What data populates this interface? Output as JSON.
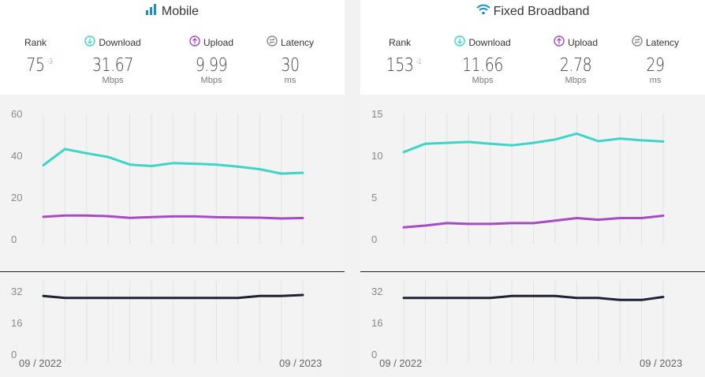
{
  "panels": [
    {
      "id": "mobile",
      "title": "Mobile",
      "icon": "signal-bars-icon",
      "rank": {
        "label": "Rank",
        "value": "75",
        "change": "-3"
      },
      "download": {
        "label": "Download",
        "value": "31.67",
        "unit": "Mbps",
        "icon": "download-icon"
      },
      "upload": {
        "label": "Upload",
        "value": "9.99",
        "unit": "Mbps",
        "icon": "upload-icon"
      },
      "latency": {
        "label": "Latency",
        "value": "30",
        "unit": "ms",
        "icon": "latency-icon"
      }
    },
    {
      "id": "fixed",
      "title": "Fixed Broadband",
      "icon": "wifi-icon",
      "rank": {
        "label": "Rank",
        "value": "153",
        "change": "-1"
      },
      "download": {
        "label": "Download",
        "value": "11.66",
        "unit": "Mbps",
        "icon": "download-icon"
      },
      "upload": {
        "label": "Upload",
        "value": "2.78",
        "unit": "Mbps",
        "icon": "upload-icon"
      },
      "latency": {
        "label": "Latency",
        "value": "29",
        "unit": "ms",
        "icon": "latency-icon"
      }
    }
  ],
  "colors": {
    "download": "#3dd6c6",
    "upload": "#a64bc4",
    "latency": "#1c2333",
    "rank_change": "#e0413b",
    "title_icon": "#1a8fc7"
  },
  "chart_data": [
    {
      "type": "line",
      "panel": "mobile",
      "x": [
        "09/2022",
        "10/2022",
        "11/2022",
        "12/2022",
        "01/2023",
        "02/2023",
        "03/2023",
        "04/2023",
        "05/2023",
        "06/2023",
        "07/2023",
        "08/2023",
        "09/2023"
      ],
      "x_tick_labels": [
        "09 / 2022",
        "09 / 2023"
      ],
      "speed_axis": {
        "ticks": [
          "60",
          "40",
          "20",
          "0"
        ],
        "ylim": [
          0,
          60
        ]
      },
      "latency_axis": {
        "ticks": [
          "32",
          "16",
          "0"
        ],
        "ylim": [
          0,
          32
        ]
      },
      "series": [
        {
          "name": "Download",
          "values": [
            35.3,
            43.0,
            41.0,
            39.2,
            35.6,
            34.9,
            36.3,
            36.0,
            35.6,
            34.6,
            33.4,
            31.3,
            31.67
          ]
        },
        {
          "name": "Upload",
          "values": [
            10.6,
            11.2,
            11.2,
            10.9,
            10.1,
            10.5,
            10.8,
            10.8,
            10.4,
            10.3,
            10.2,
            9.8,
            9.99
          ]
        },
        {
          "name": "Latency",
          "values": [
            29.5,
            28.5,
            28.5,
            28.5,
            28.5,
            28.5,
            28.5,
            28.5,
            28.5,
            28.5,
            29.5,
            29.5,
            30
          ]
        }
      ],
      "grid": true
    },
    {
      "type": "line",
      "panel": "fixed",
      "x": [
        "09/2022",
        "10/2022",
        "11/2022",
        "12/2022",
        "01/2023",
        "02/2023",
        "03/2023",
        "04/2023",
        "05/2023",
        "06/2023",
        "07/2023",
        "08/2023",
        "09/2023"
      ],
      "x_tick_labels": [
        "09 / 2022",
        "09 / 2023"
      ],
      "speed_axis": {
        "ticks": [
          "15",
          "10",
          "5",
          "0"
        ],
        "ylim": [
          0,
          15
        ]
      },
      "latency_axis": {
        "ticks": [
          "32",
          "16",
          "0"
        ],
        "ylim": [
          0,
          32
        ]
      },
      "series": [
        {
          "name": "Download",
          "values": [
            10.4,
            11.4,
            11.5,
            11.6,
            11.4,
            11.2,
            11.5,
            11.9,
            12.6,
            11.7,
            12.0,
            11.8,
            11.66
          ]
        },
        {
          "name": "Upload",
          "values": [
            1.4,
            1.6,
            1.9,
            1.8,
            1.8,
            1.9,
            1.9,
            2.2,
            2.5,
            2.3,
            2.5,
            2.5,
            2.78
          ]
        },
        {
          "name": "Latency",
          "values": [
            28.5,
            28.5,
            28.5,
            28.5,
            28.5,
            29.5,
            29.5,
            29.5,
            28.5,
            28.5,
            27.5,
            27.5,
            29
          ]
        }
      ],
      "grid": true
    }
  ]
}
